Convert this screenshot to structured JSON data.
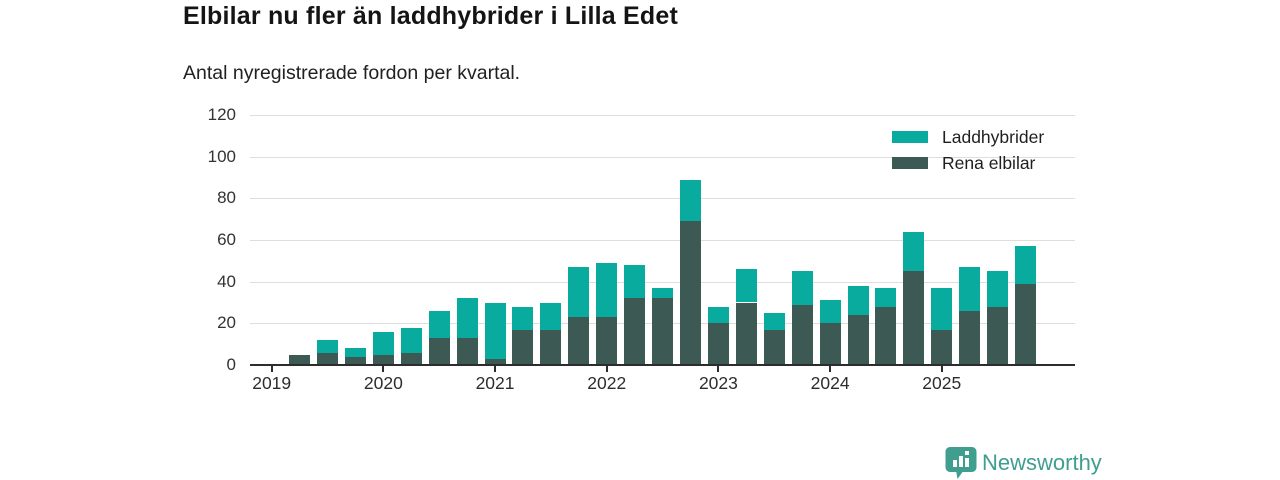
{
  "header": {
    "title": "Elbilar nu fler än laddhybrider i Lilla Edet",
    "subtitle": "Antal nyregistrerade fordon per kvartal."
  },
  "chart_data": {
    "type": "bar",
    "stacked": true,
    "title": "Elbilar nu fler än laddhybrider i Lilla Edet",
    "subtitle": "Antal nyregistrerade fordon per kvartal.",
    "xlabel": "",
    "ylabel": "",
    "ylim": [
      0,
      120
    ],
    "yticks": [
      0,
      20,
      40,
      60,
      80,
      100,
      120
    ],
    "grid": true,
    "legend_position": "top-right",
    "categories": [
      "2019 Q1",
      "2019 Q2",
      "2019 Q3",
      "2019 Q4",
      "2020 Q1",
      "2020 Q2",
      "2020 Q3",
      "2020 Q4",
      "2021 Q1",
      "2021 Q2",
      "2021 Q3",
      "2021 Q4",
      "2022 Q1",
      "2022 Q2",
      "2022 Q3",
      "2022 Q4",
      "2023 Q1",
      "2023 Q2",
      "2023 Q3",
      "2023 Q4",
      "2024 Q1",
      "2024 Q2",
      "2024 Q3",
      "2024 Q4",
      "2025 Q1",
      "2025 Q2",
      "2025 Q3",
      "2025 Q4"
    ],
    "series": [
      {
        "name": "Rena elbilar",
        "stack_order": "bottom",
        "color": "#3c5a53",
        "values": [
          0,
          5,
          6,
          4,
          5,
          6,
          13,
          13,
          3,
          17,
          17,
          23,
          23,
          32,
          32,
          69,
          20,
          30,
          17,
          29,
          20,
          24,
          28,
          45,
          17,
          26,
          28,
          39
        ]
      },
      {
        "name": "Laddhybrider",
        "stack_order": "top",
        "color": "#0aab9f",
        "values": [
          0,
          0,
          6,
          4,
          11,
          12,
          13,
          19,
          27,
          11,
          13,
          24,
          26,
          16,
          5,
          20,
          8,
          16,
          8,
          16,
          11,
          14,
          9,
          19,
          20,
          21,
          17,
          18
        ]
      }
    ],
    "legend": [
      {
        "label": "Laddhybrider",
        "color": "#0aab9f"
      },
      {
        "label": "Rena elbilar",
        "color": "#3c5a53"
      }
    ],
    "year_ticks": [
      {
        "label": "2019",
        "quarter_index": 0
      },
      {
        "label": "2020",
        "quarter_index": 4
      },
      {
        "label": "2021",
        "quarter_index": 8
      },
      {
        "label": "2022",
        "quarter_index": 12
      },
      {
        "label": "2023",
        "quarter_index": 16
      },
      {
        "label": "2024",
        "quarter_index": 20
      },
      {
        "label": "2025",
        "quarter_index": 24
      }
    ]
  },
  "branding": {
    "logo_text": "Newsworthy",
    "logo_color": "#3f9e8e",
    "logo_icon": "bar-chart-bubble-icon"
  }
}
